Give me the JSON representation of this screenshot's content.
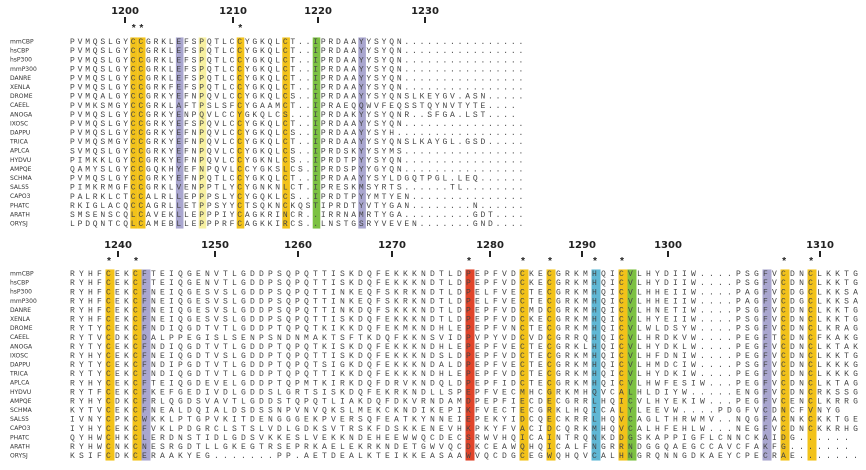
{
  "blocks": [
    {
      "ruler": [
        "1200",
        "1210",
        "1220",
        "1230"
      ],
      "conservation": "        **            *",
      "rows": [
        {
          "species": "mmCBP",
          "sequence": "PVMQSLGYCCGRKLEFSPQTLCCYGKQLCT..IPRDAAYYSYQN................"
        },
        {
          "species": "hsCBP",
          "sequence": "PVMQSLGYCCGRKLEFSPQTLCCYGKQLCT..IPRDAAYYSYQN................"
        },
        {
          "species": "hsP300",
          "sequence": "PVMQSLGYCCGRKLEFSPQTLCCYGKQLCT..IPRDAAYYSYQN................"
        },
        {
          "species": "mmP300",
          "sequence": "PVMQSLGYCCGRKLEFSPQTLCCYGKQLCT..IPRDAAYYSYQN................"
        },
        {
          "species": "DANRE",
          "sequence": "PVMQSLGYCCGRKLEFSPQTLCCYGKQLCT..IPRDAAYYSYQN................"
        },
        {
          "species": "XENLA",
          "sequence": "PVMQSLGYCCGRKFEFSPQTLCCYGKQLCT..IPRDAAYYSYQN................"
        },
        {
          "species": "DROME",
          "sequence": "PVMQALGYCCGRKYEFNPQVLCCYGKQLCS..IPRDAAYYSYQNSLKEYGV.ASN....."
        },
        {
          "species": "CAEEL",
          "sequence": "PVMKSMGYCCGRKLAFTPSLSFCYGAAMCT..IPRAEQQWVFEQSSTQYNVTYTE...."
        },
        {
          "species": "ANOGA",
          "sequence": "PVMQSLGYCCGRKYENPQVLCCYGKQLCS...IPRDAKYYSYQNR..SFGA.LST...."
        },
        {
          "species": "IXOSC",
          "sequence": "PVMQSLGYCCGRKYEFSPQVLCCYGKQLCT..IPRDAAYYSYQN................"
        },
        {
          "species": "DAPPU",
          "sequence": "PVMQSLGYCCGRKYEFNPQVLCCYGKQLCS..IPRDAAYYSYH................."
        },
        {
          "species": "TRICA",
          "sequence": "PVMQSMGYCCGRKYEFNPQVLCCYGKQLCT..IPRDAAYYSYQNSLKAYGL.GSD....."
        },
        {
          "species": "APLCA",
          "sequence": "SVMQSLGYCCGRKYEFNPQVLCCYGKQLCS..IPRDSKYYSYMS................"
        },
        {
          "species": "HYDVU",
          "sequence": "PIMKKLGYCCGRKYEFNPQVLCCYGKNLCS..IPRDTPYYSYQN................"
        },
        {
          "species": "AMPQE",
          "sequence": "QAMYSLGYCCGQKHYEFNPQVLCCYGKSLCS.IPRDSPYYGYQN................"
        },
        {
          "species": "SCHMA",
          "sequence": "PVMQSLGYCCGRKYEFNPQTLCCYGKQLCT..IPRDAAYYSYLDGQTPGL.LEQ......"
        },
        {
          "species": "SALS5",
          "sequence": "PIMKRMGFCCGRKLVENPPTLYCYGNKNLCT.IPRESKMSYRTS......TL........"
        },
        {
          "species": "CAPO3",
          "sequence": "PALRKLCTCCALRLLEPPPSLYCYGQKLCS..IPRDTPYYMTYEN..............."
        },
        {
          "species": "PHATC",
          "sequence": "RKIGLACQCCAGRLLETPPSYYCTSQKNCKQSTIPRDTYVTYGAN........N......"
        },
        {
          "species": "ARATH",
          "sequence": "SMSENSCQLCAVEKLLEPPPIYCAGKRINCR..IRRNAMRTYGA.........GDT...."
        },
        {
          "species": "ORYSJ",
          "sequence": "LPDQNTCQLCAMEBLLEPPPRFCAGKKIRCS..LNSTGSRYVEVEN.......GND...."
        }
      ]
    },
    {
      "ruler": [
        "1240",
        "1250",
        "1260",
        "1270",
        "1280",
        "1290",
        "1300",
        "1310"
      ],
      "conservation": "    *  *                                    *     *  *    *  *                 *  *",
      "rows": [
        {
          "species": "mmCBP",
          "sequence": "RYHFCEKCFTEIQGENVTLGDDPSQPQTTISKDQFEKKKNDTLDPEPFVDCKECGRKMHQICVLHYDIIW....PSGFVCDNCLKKTG"
        },
        {
          "species": "hsCBP",
          "sequence": "RYHFCEKCFTEIQGENVTLGDDPSQPQTTISKDQFEKKKNDTLDPEPFVDCKECGRKMHQICVLHYDIIW....PSGFVCDNCLKKTG"
        },
        {
          "species": "hsP300",
          "sequence": "RYHFCEKCFNEIQGESVSLGDDPSQPQTTINKEQFSKRKNDTLDPELFVECTECGRKMHQICVLHHEIIW....PAGFVCDGCLKKSA"
        },
        {
          "species": "mmP300",
          "sequence": "RYHFCEKCFNEIQGESVSLGDDPSQPQTTINKEQFSKRKNDTLDPELFVECTECGRKMHQICVLHHEIIW....PAGFVCDGCLKKSA"
        },
        {
          "species": "DANRE",
          "sequence": "RYHFCEKCFNEIQGESVSLGDDPSQPQTTINKDQFSKKKNDTLDPEPFVDCMDCGRKMHQICVLHNETIW....PSGFVCDNCLKKTG"
        },
        {
          "species": "XENLA",
          "sequence": "RYHFCEKCFNEIQGESVSLGDDPSQPQTTISKDQFEKKKNDTLDPEPFVDCKECGRKMHQICVLHYEIIW....PSGFVCDNCLKKTG"
        },
        {
          "species": "DROME",
          "sequence": "RYTYCEKCFNDIQGDTVTLGDDPTQPQTKIKKDQFEKMKNDHLEPEPFVNCTECGRKMHQICVLWLDSYW....PSGFVCDNCLKRAG"
        },
        {
          "species": "CAEEL",
          "sequence": "RYTVCDKCDALPPEGISLSENPSNDNMAKTSFTKDQFKKNSVIDPVPYVDCVDCGRRQHQICVLHRDKVW....PEGFTCDNCFKAKG"
        },
        {
          "species": "ANOGA",
          "sequence": "RYTYCEKCFNDIQGDTVTLGDDPTQPQTKISKDQFEKKKNDHLEPEPFVECTECGRKLHQICVLHYDKLW....PEGFVCDNCLKTAK"
        },
        {
          "species": "IXOSC",
          "sequence": "RYHYCEKCFNEIQGDTVSLGDDPTQPQTTISKDQFEKKKNDSLDPEPFVDCTECGRKMHQICVLHFDNIW....PEGFVCDNCLKKTG"
        },
        {
          "species": "DAPPU",
          "sequence": "RYTYCEKCFNDIPGDTVTLGDDPTQPQTSIGKDQFEKKKNDALDPEPFVECTECGRKMHQICVLHMDCIW....PSGFVCDNCLKKKG"
        },
        {
          "species": "TRICA",
          "sequence": "RYTYCEKCFNDIQGDTVTLGDDPTQPQTTIKKDQFEKKKNDHLEPEPFVDCTECGRKMHQICVLHYDKIW....PEGFVCDNCLKKKG"
        },
        {
          "species": "APLCA",
          "sequence": "RYHYCEKCFTEIQGDEVELGDDPTQPMTKIRKDQFDRVKNDQLDPEPFIDCTECGRKMHQICVLHWFESIW...PEGFVCDNCLKTAG"
        },
        {
          "species": "HYDVU",
          "sequence": "RYTFCEKCFKEFGEDIVDLGDDSLGRTSISKDQFEKRKNDLLSPEPFVECMHCGRKMHQVCALHLDIYW.....ENGFVCDNCRKSSG"
        },
        {
          "species": "AMPQE",
          "sequence": "RYHYCDKCFRLQGDSVAVTLGDDSTQPQTLIAKDQFDKVRNDAMDPEPFIECDECGRRLHQICVLHYEKIW...PEGFVCENCLKRRG"
        },
        {
          "species": "SCHMA",
          "sequence": "KYTVCEKCFNEALDQIALDSDSSNPVNVQKSLMEKCKNDIKEPIKFVECTECGRKLHQICALYLEEVW....PDGFVCDNCFVNYG"
        },
        {
          "species": "SALS5",
          "sequence": "IVNYCPKCWKKLPTGPVKITDENGGGEKPVERSQFEATKYNNEIEPEKYIDCQECKRRLHQVCAGLTHRWMV..NQGFACNKCKKTGE"
        },
        {
          "species": "CAPO3",
          "sequence": "IYHYCEKCFVKLPDGRCLSTSLVDLGDKSVTRSKFDSKKENEVHKPKYFVACIDCQRKMHQVCALHFEHLW...NEGFVCDNCKKRHG"
        },
        {
          "species": "PHATC",
          "sequence": "QYHWCHKCLERDNSTIDLGDSVKKESLVEKKNDEHEEWWQCDECSRWVHQICAINTRQNKDDGSKAPPIGFLCNNCKAIDG......"
        },
        {
          "species": "ARATH",
          "sequence": "RYHWCNKCNESRGDTLLGKEGTRSEPRKAELEKRKNDETGWVQCDKCEAWQHQICALFNGRRNDGGQAEGCCAVCFAKFG......."
        },
        {
          "species": "ORYSJ",
          "sequence": "KSIFCDKCERAAKYEG.......PP.AETDEALKTEIKKEASAAWVQCDGCEGWQHQVCALHNGRQNNGDKAEYCPECRAE......."
        }
      ]
    }
  ]
}
